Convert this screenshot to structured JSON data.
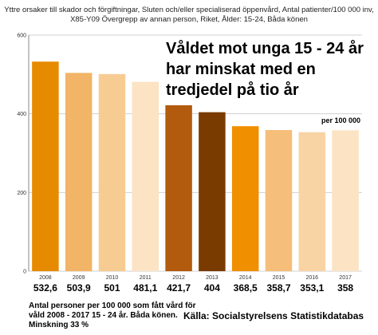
{
  "header": {
    "subtitle": "Yttre orsaker till skador och förgiftningar, Sluten och/eller specialiserad öppenvård, Antal patienter/100 000 inv, X85-Y09 Övergrepp av annan person, Riket, Ålder: 15-24, Båda könen"
  },
  "annotations": {
    "headline": "Våldet mot unga 15 - 24 år har minskat med en tredjedel på tio år",
    "unit_label": "per 100 000",
    "footnote": "Antal personer per 100 000 som fått vård för våld 2008 - 2017 15 - 24 år. Båda könen. Minskning 33 %",
    "source": "Källa: Socialstyrelsens Statistikdatabas"
  },
  "chart_data": {
    "type": "bar",
    "categories": [
      "2008",
      "2009",
      "2010",
      "2011",
      "2012",
      "2013",
      "2014",
      "2015",
      "2016",
      "2017"
    ],
    "values": [
      532.6,
      503.9,
      501,
      481.1,
      421.7,
      404,
      368.5,
      358.7,
      353.1,
      358
    ],
    "value_labels": [
      "532,6",
      "503,9",
      "501",
      "481,1",
      "421,7",
      "404",
      "368,5",
      "358,7",
      "353,1",
      "358"
    ],
    "colors": [
      "#E68A00",
      "#F2B466",
      "#F7CC93",
      "#FBE3C4",
      "#B25A0E",
      "#7A3B00",
      "#F08F00",
      "#F5BE7A",
      "#F8D3A4",
      "#FBE3C4"
    ],
    "y_ticks": [
      0,
      200,
      400,
      600
    ],
    "ylim": [
      0,
      600
    ],
    "grid": "horizontal",
    "title": "",
    "xlabel": "",
    "ylabel": ""
  }
}
